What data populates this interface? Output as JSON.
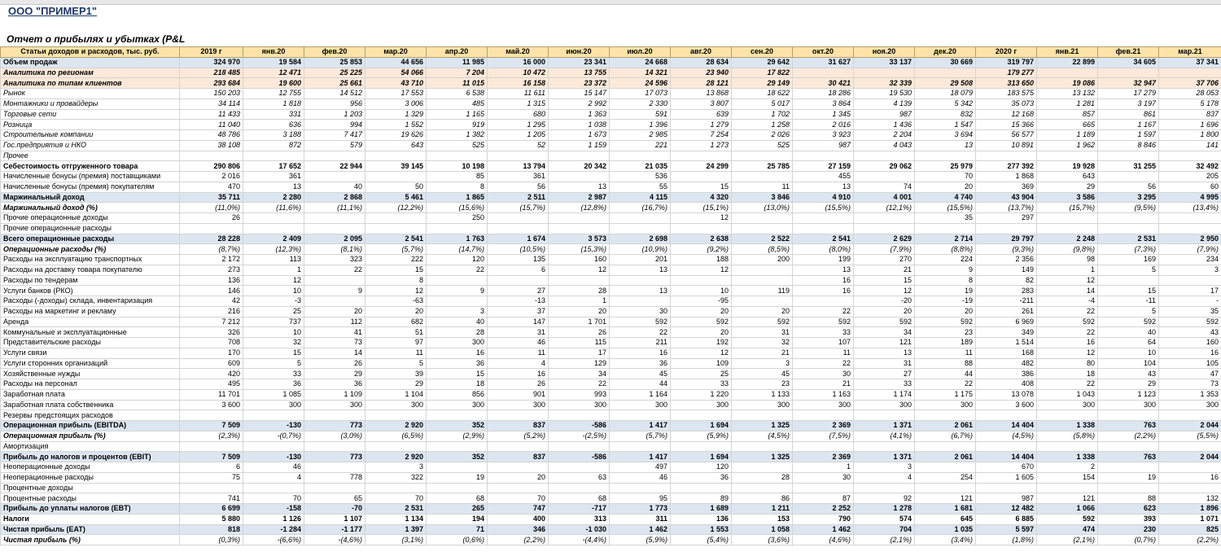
{
  "company": "ООО \"ПРИМЕР1\"",
  "report_title": "Отчет о прибылях и убытках (P&L",
  "table": {
    "header_label": "Статьи доходов и расходов, тыс. руб.",
    "columns": [
      "2019 г",
      "янв.20",
      "фев.20",
      "мар.20",
      "апр.20",
      "май.20",
      "июн.20",
      "июл.20",
      "авг.20",
      "сен.20",
      "окт.20",
      "ноя.20",
      "дек.20",
      "2020 г",
      "янв.21",
      "фев.21",
      "мар.21"
    ],
    "rows": [
      {
        "label": "Объем продаж",
        "values": [
          "324 970",
          "19 584",
          "25 853",
          "44 656",
          "11 985",
          "16 000",
          "23 341",
          "24 668",
          "28 634",
          "29 642",
          "31 627",
          "33 137",
          "30 669",
          "319 797",
          "22 899",
          "34 605",
          "37 341"
        ]
      },
      {
        "label": "Аналитика по регионам",
        "values": [
          "218 485",
          "12 471",
          "25 225",
          "54 066",
          "7 204",
          "10 472",
          "13 755",
          "14 321",
          "23 940",
          "17 822",
          null,
          null,
          null,
          "179 277",
          null,
          null,
          null
        ]
      },
      {
        "label": "Аналитика по типам клиентов",
        "values": [
          "293 684",
          "19 600",
          "25 661",
          "43 710",
          "11 015",
          "16 158",
          "23 372",
          "24 596",
          "28 121",
          "29 149",
          "30 421",
          "32 339",
          "29 508",
          "313 650",
          "19 086",
          "32 947",
          "37 706"
        ]
      },
      {
        "label": "Рынок",
        "values": [
          "150 203",
          "12 755",
          "14 512",
          "17 553",
          "6 538",
          "11 611",
          "15 147",
          "17 073",
          "13 868",
          "18 622",
          "18 286",
          "19 530",
          "18 079",
          "183 575",
          "13 132",
          "17 279",
          "28 053"
        ]
      },
      {
        "label": "Монтажники и провайдеры",
        "values": [
          "34 114",
          "1 818",
          "956",
          "3 006",
          "485",
          "1 315",
          "2 992",
          "2 330",
          "3 807",
          "5 017",
          "3 864",
          "4 139",
          "5 342",
          "35 073",
          "1 281",
          "3 197",
          "5 178"
        ]
      },
      {
        "label": "Торговые сети",
        "values": [
          "11 433",
          "331",
          "1 203",
          "1 329",
          "1 165",
          "680",
          "1 363",
          "591",
          "639",
          "1 702",
          "1 345",
          "987",
          "832",
          "12 168",
          "857",
          "861",
          "837"
        ]
      },
      {
        "label": "Розница",
        "values": [
          "11 040",
          "636",
          "994",
          "1 552",
          "919",
          "1 295",
          "1 038",
          "1 396",
          "1 279",
          "1 258",
          "2 016",
          "1 436",
          "1 547",
          "15 366",
          "665",
          "1 167",
          "1 696"
        ]
      },
      {
        "label": "Строительные компании",
        "values": [
          "48 786",
          "3 188",
          "7 417",
          "19 626",
          "1 382",
          "1 205",
          "1 673",
          "2 985",
          "7 254",
          "2 026",
          "3 923",
          "2 204",
          "3 694",
          "56 577",
          "1 189",
          "1 597",
          "1 800"
        ]
      },
      {
        "label": "Гос.предприятия и НКО",
        "values": [
          "38 108",
          "872",
          "579",
          "643",
          "525",
          "52",
          "1 159",
          "221",
          "1 273",
          "525",
          "987",
          "4 043",
          "13",
          "10 891",
          "1 962",
          "8 846",
          "141"
        ]
      },
      {
        "label": "Прочее",
        "values": [
          null,
          null,
          null,
          null,
          null,
          null,
          null,
          null,
          null,
          null,
          null,
          null,
          null,
          null,
          null,
          null,
          null
        ]
      },
      {
        "label": "Себестоимость отгруженного товара",
        "values": [
          "290 806",
          "17 652",
          "22 944",
          "39 145",
          "10 198",
          "13 794",
          "20 342",
          "21 035",
          "24 299",
          "25 785",
          "27 159",
          "29 062",
          "25 979",
          "277 392",
          "19 928",
          "31 255",
          "32 492"
        ]
      },
      {
        "label": "Начисленные бонусы (премия) поставщиками",
        "values": [
          "2 016",
          "361",
          null,
          null,
          "85",
          "361",
          null,
          "536",
          null,
          null,
          "455",
          null,
          "70",
          "1 868",
          "643",
          null,
          "205"
        ]
      },
      {
        "label": "Начисленные бонусы (премия) покупателям",
        "values": [
          "470",
          "13",
          "40",
          "50",
          "8",
          "56",
          "13",
          "55",
          "15",
          "11",
          "13",
          "74",
          "20",
          "369",
          "29",
          "56",
          "60"
        ]
      },
      {
        "label": "Маржинальный доход",
        "values": [
          "35 711",
          "2 280",
          "2 868",
          "5 461",
          "1 865",
          "2 511",
          "2 987",
          "4 115",
          "4 320",
          "3 846",
          "4 910",
          "4 001",
          "4 740",
          "43 904",
          "3 586",
          "3 295",
          "4 995"
        ]
      },
      {
        "label": "Маржинальный доход (%)",
        "values": [
          "(11,0%)",
          "(11,6%)",
          "(11,1%)",
          "(12,2%)",
          "(15,6%)",
          "(15,7%)",
          "(12,8%)",
          "(16,7%)",
          "(15,1%)",
          "(13,0%)",
          "(15,5%)",
          "(12,1%)",
          "(15,5%)",
          "(13,7%)",
          "(15,7%)",
          "(9,5%)",
          "(13,4%)"
        ]
      },
      {
        "label": "Прочие операционные доходы",
        "values": [
          "26",
          null,
          null,
          null,
          "250",
          null,
          null,
          null,
          "12",
          null,
          null,
          null,
          "35",
          "297",
          null,
          null,
          null
        ]
      },
      {
        "label": "Прочие операционные расходы",
        "values": [
          null,
          null,
          null,
          null,
          null,
          null,
          null,
          null,
          null,
          null,
          null,
          null,
          null,
          null,
          null,
          null,
          null
        ]
      },
      {
        "label": "Всего операционные расходы",
        "values": [
          "28 228",
          "2 409",
          "2 095",
          "2 541",
          "1 763",
          "1 674",
          "3 573",
          "2 698",
          "2 638",
          "2 522",
          "2 541",
          "2 629",
          "2 714",
          "29 797",
          "2 248",
          "2 531",
          "2 950"
        ]
      },
      {
        "label": "Операционные расходы (%)",
        "values": [
          "(8,7%)",
          "(12,3%)",
          "(8,1%)",
          "(5,7%)",
          "(14,7%)",
          "(10,5%)",
          "(15,3%)",
          "(10,9%)",
          "(9,2%)",
          "(8,5%)",
          "(8,0%)",
          "(7,9%)",
          "(8,8%)",
          "(9,3%)",
          "(9,8%)",
          "(7,3%)",
          "(7,9%)"
        ]
      },
      {
        "label": "Расходы на эксплуатацию транспортных",
        "values": [
          "2 172",
          "113",
          "323",
          "222",
          "120",
          "135",
          "160",
          "201",
          "188",
          "200",
          "199",
          "270",
          "224",
          "2 356",
          "98",
          "169",
          "234"
        ]
      },
      {
        "label": "Расходы на доставку товара покупателю",
        "values": [
          "273",
          "1",
          "22",
          "15",
          "22",
          "6",
          "12",
          "13",
          "12",
          null,
          "13",
          "21",
          "9",
          "149",
          "1",
          "5",
          "3"
        ]
      },
      {
        "label": "Расходы по тендерам",
        "values": [
          "136",
          "12",
          null,
          "8",
          null,
          null,
          null,
          null,
          null,
          null,
          "16",
          "15",
          "8",
          "82",
          "12",
          null,
          null
        ]
      },
      {
        "label": "Услуги банков (РКО)",
        "values": [
          "146",
          "10",
          "9",
          "12",
          "9",
          "27",
          "28",
          "13",
          "10",
          "119",
          "16",
          "12",
          "19",
          "283",
          "14",
          "15",
          "17"
        ]
      },
      {
        "label": "Расходы (-доходы) склада, инвентаризация",
        "values": [
          "42",
          "-3",
          null,
          "-63",
          null,
          "-13",
          "1",
          null,
          "-95",
          null,
          null,
          "-20",
          "-19",
          "-211",
          "-4",
          "-11",
          "-"
        ]
      },
      {
        "label": "Расходы на маркетинг и рекламу",
        "values": [
          "216",
          "25",
          "20",
          "20",
          "3",
          "37",
          "20",
          "30",
          "20",
          "20",
          "22",
          "20",
          "20",
          "261",
          "22",
          "5",
          "35"
        ]
      },
      {
        "label": "Аренда",
        "values": [
          "7 212",
          "737",
          "112",
          "682",
          "40",
          "147",
          "1 701",
          "592",
          "592",
          "592",
          "592",
          "592",
          "592",
          "6 969",
          "592",
          "592",
          "592"
        ]
      },
      {
        "label": "Коммунальные и эксплуатационные",
        "values": [
          "326",
          "10",
          "41",
          "51",
          "28",
          "31",
          "26",
          "22",
          "20",
          "31",
          "33",
          "34",
          "23",
          "349",
          "22",
          "40",
          "43"
        ]
      },
      {
        "label": "Представительские расходы",
        "values": [
          "708",
          "32",
          "73",
          "97",
          "300",
          "46",
          "115",
          "211",
          "192",
          "32",
          "107",
          "121",
          "189",
          "1 514",
          "16",
          "64",
          "160"
        ]
      },
      {
        "label": "Услуги связи",
        "values": [
          "170",
          "15",
          "14",
          "11",
          "16",
          "11",
          "17",
          "16",
          "12",
          "21",
          "11",
          "13",
          "11",
          "168",
          "12",
          "10",
          "16"
        ]
      },
      {
        "label": "Услуги сторонних организаций",
        "values": [
          "609",
          "5",
          "26",
          "5",
          "36",
          "4",
          "129",
          "36",
          "109",
          "3",
          "22",
          "31",
          "88",
          "482",
          "80",
          "104",
          "105"
        ]
      },
      {
        "label": "Хозяйственные нужды",
        "values": [
          "420",
          "33",
          "29",
          "39",
          "15",
          "16",
          "34",
          "45",
          "25",
          "45",
          "30",
          "27",
          "44",
          "386",
          "18",
          "43",
          "47"
        ]
      },
      {
        "label": "Расходы на персонал",
        "values": [
          "495",
          "36",
          "36",
          "29",
          "18",
          "26",
          "22",
          "44",
          "33",
          "23",
          "21",
          "33",
          "22",
          "408",
          "22",
          "29",
          "73"
        ]
      },
      {
        "label": "Заработная плата",
        "values": [
          "11 701",
          "1 085",
          "1 109",
          "1 104",
          "856",
          "901",
          "993",
          "1 164",
          "1 220",
          "1 133",
          "1 163",
          "1 174",
          "1 175",
          "13 078",
          "1 043",
          "1 123",
          "1 353"
        ]
      },
      {
        "label": "Заработная плата собственника",
        "values": [
          "3 600",
          "300",
          "300",
          "300",
          "300",
          "300",
          "300",
          "300",
          "300",
          "300",
          "300",
          "300",
          "300",
          "3 600",
          "300",
          "300",
          "300"
        ]
      },
      {
        "label": "Резервы предстоящих расходов",
        "values": [
          null,
          null,
          null,
          null,
          null,
          null,
          null,
          null,
          null,
          null,
          null,
          null,
          null,
          null,
          null,
          null,
          null
        ]
      },
      {
        "label": "Операционная прибыль (EBITDA)",
        "values": [
          "7 509",
          "-130",
          "773",
          "2 920",
          "352",
          "837",
          "-586",
          "1 417",
          "1 694",
          "1 325",
          "2 369",
          "1 371",
          "2 061",
          "14 404",
          "1 338",
          "763",
          "2 044"
        ]
      },
      {
        "label": "Операционная прибыль (%)",
        "values": [
          "(2,3%)",
          "-(0,7%)",
          "(3,0%)",
          "(6,5%)",
          "(2,9%)",
          "(5,2%)",
          "-(2,5%)",
          "(5,7%)",
          "(5,9%)",
          "(4,5%)",
          "(7,5%)",
          "(4,1%)",
          "(6,7%)",
          "(4,5%)",
          "(5,8%)",
          "(2,2%)",
          "(5,5%)"
        ]
      },
      {
        "label": "Амортизация",
        "values": [
          null,
          null,
          null,
          null,
          null,
          null,
          null,
          null,
          null,
          null,
          null,
          null,
          null,
          null,
          null,
          null,
          null
        ]
      },
      {
        "label": "Прибыль до налогов и процентов (EBIT)",
        "values": [
          "7 509",
          "-130",
          "773",
          "2 920",
          "352",
          "837",
          "-586",
          "1 417",
          "1 694",
          "1 325",
          "2 369",
          "1 371",
          "2 061",
          "14 404",
          "1 338",
          "763",
          "2 044"
        ]
      },
      {
        "label": "Неоперационные доходы",
        "values": [
          "6",
          "46",
          null,
          "3",
          null,
          null,
          null,
          "497",
          "120",
          null,
          "1",
          "3",
          null,
          "670",
          "2",
          null,
          null
        ]
      },
      {
        "label": "Неоперационные расходы",
        "values": [
          "75",
          "4",
          "778",
          "322",
          "19",
          "20",
          "63",
          "46",
          "36",
          "28",
          "30",
          "4",
          "254",
          "1 605",
          "154",
          "19",
          "16"
        ]
      },
      {
        "label": "Процентные доходы",
        "values": [
          null,
          null,
          null,
          null,
          null,
          null,
          null,
          null,
          null,
          null,
          null,
          null,
          null,
          null,
          null,
          null,
          null
        ]
      },
      {
        "label": "Процентные расходы",
        "values": [
          "741",
          "70",
          "65",
          "70",
          "68",
          "70",
          "68",
          "95",
          "89",
          "86",
          "87",
          "92",
          "121",
          "987",
          "121",
          "88",
          "132"
        ]
      },
      {
        "label": "Прибыль до уплаты налогов (EBT)",
        "values": [
          "6 699",
          "-158",
          "-70",
          "2 531",
          "265",
          "747",
          "-717",
          "1 773",
          "1 689",
          "1 211",
          "2 252",
          "1 278",
          "1 681",
          "12 482",
          "1 066",
          "623",
          "1 896"
        ]
      },
      {
        "label": "Налоги",
        "values": [
          "5 880",
          "1 126",
          "1 107",
          "1 134",
          "194",
          "400",
          "313",
          "311",
          "136",
          "153",
          "790",
          "574",
          "645",
          "6 885",
          "592",
          "393",
          "1 071"
        ]
      },
      {
        "label": "Чистая прибыль  (EAT)",
        "values": [
          "818",
          "-1 284",
          "-1 177",
          "1 397",
          "71",
          "346",
          "-1 030",
          "1 462",
          "1 553",
          "1 058",
          "1 462",
          "704",
          "1 035",
          "5 597",
          "474",
          "230",
          "825"
        ]
      },
      {
        "label": "Чистая прибыль  (%)",
        "values": [
          "(0,3%)",
          "-(6,6%)",
          "-(4,6%)",
          "(3,1%)",
          "(0,6%)",
          "(2,2%)",
          "-(4,4%)",
          "(5,9%)",
          "(5,4%)",
          "(3,6%)",
          "(4,6%)",
          "(2,1%)",
          "(3,4%)",
          "(1,8%)",
          "(2,1%)",
          "(0,7%)",
          "(2,2%)"
        ]
      }
    ]
  }
}
